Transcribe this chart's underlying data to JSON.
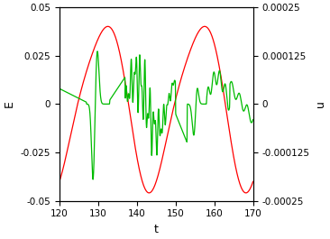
{
  "xlim": [
    120,
    170
  ],
  "ylim_left": [
    -0.05,
    0.05
  ],
  "ylim_right": [
    -0.00025,
    0.00025
  ],
  "xticks": [
    120,
    130,
    140,
    150,
    160,
    170
  ],
  "yticks_left": [
    -0.05,
    -0.025,
    0,
    0.025,
    0.05
  ],
  "yticks_right": [
    -0.00025,
    -0.000125,
    0,
    0.000125,
    0.00025
  ],
  "xlabel": "t",
  "ylabel_left": "E",
  "ylabel_right": "u",
  "red_color": "#ff0000",
  "green_color": "#00bb00",
  "bg_color": "#ffffff"
}
